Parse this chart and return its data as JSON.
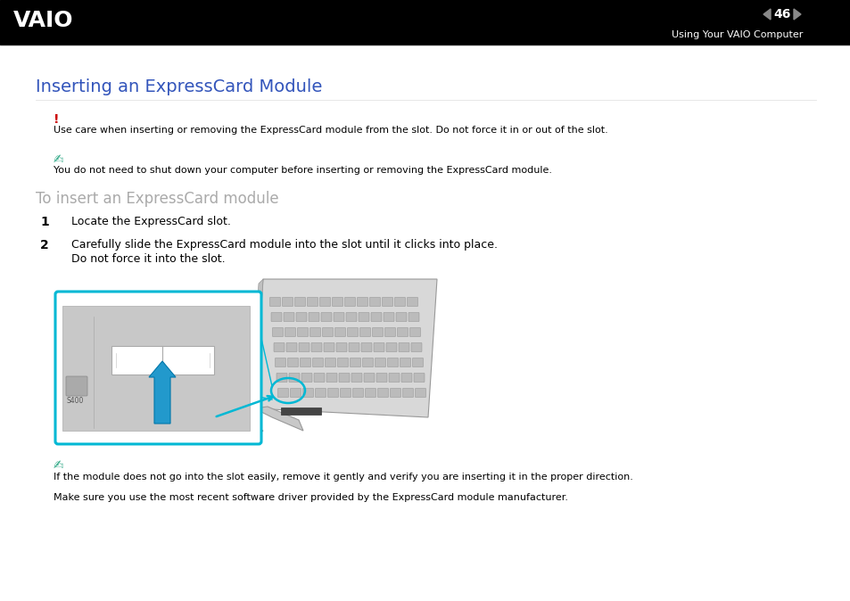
{
  "bg_color": "#ffffff",
  "header_bg": "#000000",
  "header_text_right": "Using Your VAIO Computer",
  "header_page_num": "46",
  "title": "Inserting an ExpressCard Module",
  "title_color": "#3355bb",
  "title_fontsize": 14,
  "exclaim_color": "#cc0000",
  "exclaim_text": "!",
  "warning_text": "Use care when inserting or removing the ExpressCard module from the slot. Do not force it in or out of the slot.",
  "note_text1": "You do not need to shut down your computer before inserting or removing the ExpressCard module.",
  "subheading": "To insert an ExpressCard module",
  "subheading_color": "#aaaaaa",
  "step1_num": "1",
  "step1_text": "Locate the ExpressCard slot.",
  "step2_num": "2",
  "step2_text_line1": "Carefully slide the ExpressCard module into the slot until it clicks into place.",
  "step2_text_line2": "Do not force it into the slot.",
  "note_text2": "If the module does not go into the slot easily, remove it gently and verify you are inserting it in the proper direction.",
  "note_text3": "Make sure you use the most recent software driver provided by the ExpressCard module manufacturer.",
  "body_fontsize": 9,
  "small_fontsize": 8,
  "note_icon_color": "#33aa88",
  "cyan_color": "#00b8d4"
}
